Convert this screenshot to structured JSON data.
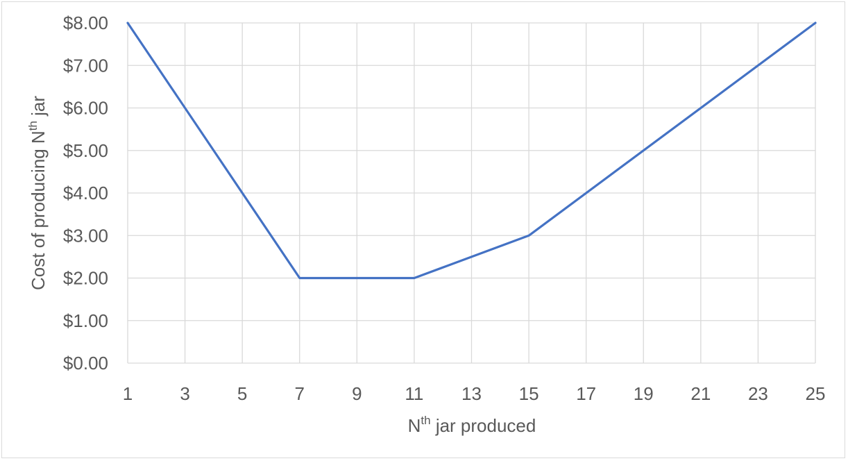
{
  "chart_data": {
    "type": "line",
    "title": "",
    "xlabel": {
      "base": "N",
      "sup": "th",
      "rest": " jar produced"
    },
    "ylabel": {
      "base": "Cost of producing N",
      "sup": "th",
      "rest": " jar"
    },
    "x_ticks": [
      "1",
      "3",
      "5",
      "7",
      "9",
      "11",
      "13",
      "15",
      "17",
      "19",
      "21",
      "23",
      "25"
    ],
    "y_ticks": [
      "$0.00",
      "$1.00",
      "$2.00",
      "$3.00",
      "$4.00",
      "$5.00",
      "$6.00",
      "$7.00",
      "$8.00"
    ],
    "xlim": [
      1,
      25
    ],
    "ylim": [
      0,
      8
    ],
    "grid": true,
    "legend": "none",
    "line_color": "#4472c4",
    "grid_color": "#d9d9d9",
    "series": [
      {
        "points": [
          [
            1,
            8
          ],
          [
            7,
            2
          ],
          [
            11,
            2
          ],
          [
            15,
            3
          ],
          [
            25,
            8
          ]
        ]
      }
    ]
  }
}
